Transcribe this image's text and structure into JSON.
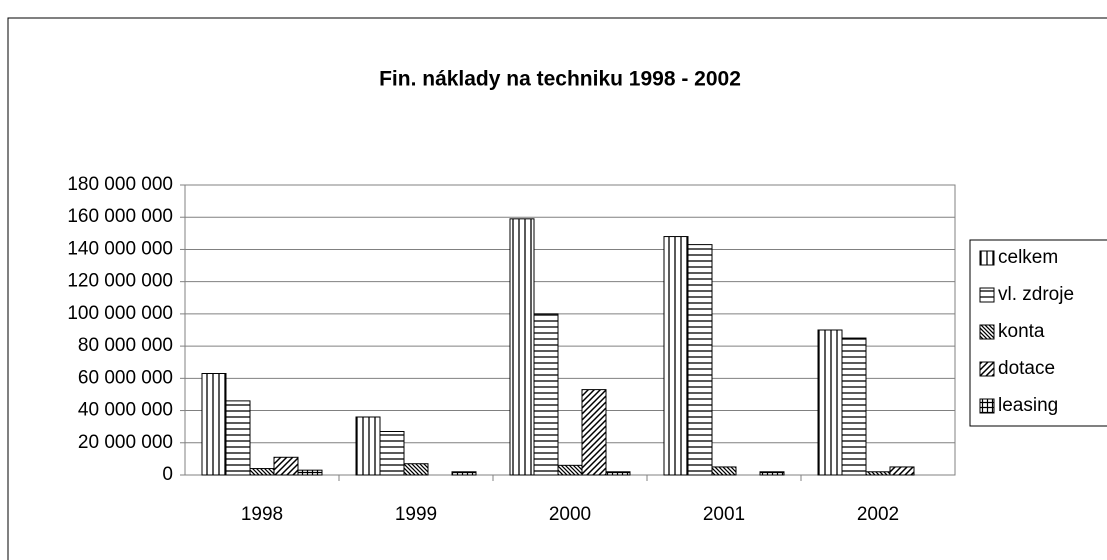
{
  "chart_data": {
    "type": "bar",
    "title": "Fin. náklady na techniku 1998 - 2002",
    "categories": [
      "1998",
      "1999",
      "2000",
      "2001",
      "2002"
    ],
    "series": [
      {
        "name": "celkem",
        "color": "#000000",
        "pattern": "vertical",
        "values": [
          63000000,
          36000000,
          159000000,
          148000000,
          90000000
        ]
      },
      {
        "name": "vl. zdroje",
        "color": "#000000",
        "pattern": "horizontal",
        "values": [
          46000000,
          27000000,
          100000000,
          143000000,
          85000000
        ]
      },
      {
        "name": "konta",
        "color": "#000000",
        "pattern": "diagonal-down",
        "values": [
          4000000,
          7000000,
          6000000,
          5000000,
          2000000
        ]
      },
      {
        "name": "dotace",
        "color": "#000000",
        "pattern": "diagonal-up",
        "values": [
          11000000,
          0,
          53000000,
          0,
          5000000
        ]
      },
      {
        "name": "leasing",
        "color": "#000000",
        "pattern": "grid",
        "values": [
          3000000,
          2000000,
          2000000,
          2000000,
          0
        ]
      }
    ],
    "ylim": [
      0,
      180000000
    ],
    "yticks": [
      {
        "value": 0,
        "label": "0"
      },
      {
        "value": 20000000,
        "label": "20 000 000"
      },
      {
        "value": 40000000,
        "label": "40 000 000"
      },
      {
        "value": 60000000,
        "label": "60 000 000"
      },
      {
        "value": 80000000,
        "label": "80 000 000"
      },
      {
        "value": 100000000,
        "label": "100 000 000"
      },
      {
        "value": 120000000,
        "label": "120 000 000"
      },
      {
        "value": 140000000,
        "label": "140 000 000"
      },
      {
        "value": 160000000,
        "label": "160 000 000"
      },
      {
        "value": 180000000,
        "label": "180 000 000"
      }
    ],
    "grid": true,
    "legend": "right"
  }
}
